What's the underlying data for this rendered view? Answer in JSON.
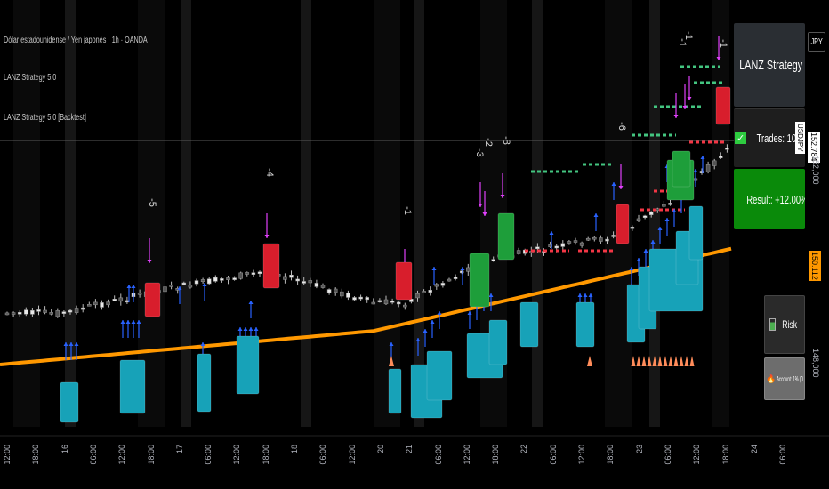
{
  "legend": {
    "symbol_line": "Dólar estadounidense / Yen japonés · 1h · OANDA",
    "indicator_1": "LANZ Strategy 5.0",
    "indicator_2": "LANZ Strategy 5.0 [Backtest]"
  },
  "panel": {
    "title": "LANZ Strategy 5.0",
    "trades_label": "Trades: 10",
    "result_label": "Result: +12.00%",
    "risk_label": "Risk",
    "account_label": "Account: 1% (0.1% Lots"
  },
  "price_scale": {
    "symbol": "JPY",
    "current_pair_label": "USDJPY",
    "current_price": "152.784",
    "level_152": "152,000",
    "orange_level": "150.112",
    "level_148": "148,000"
  },
  "time_axis": [
    "12:00",
    "18:00",
    "16",
    "06:00",
    "12:00",
    "18:00",
    "17",
    "06:00",
    "12:00",
    "18:00",
    "18",
    "06:00",
    "12:00",
    "20",
    "21",
    "06:00",
    "12:00",
    "18:00",
    "22",
    "06:00",
    "12:00",
    "18:00",
    "23",
    "06:00",
    "12:00",
    "18:00",
    "24",
    "06:00"
  ],
  "signal_labels": [
    "-5",
    "-4",
    "-1",
    "-3",
    "-2",
    "-8",
    "-6",
    "-1",
    "-1",
    "-1"
  ],
  "colors": {
    "background": "#000000",
    "ema": "#ff9800",
    "long_box": "#17a2b8",
    "short_box": "#d81e2c",
    "win_box": "#1e9e3a",
    "panel_title_bg": "#2a2e33",
    "trades_bg": "#1e1e1e",
    "result_bg": "#0a8a0a",
    "arrow_up": "#2962ff",
    "arrow_down": "#e040fb",
    "sl_color": "#f23645",
    "tp_color": "#43c580"
  },
  "icons": {
    "title": "lightning-icon",
    "trades": "check-icon",
    "result": "money-icon",
    "risk": "battery-icon",
    "account": "fire-icon"
  }
}
